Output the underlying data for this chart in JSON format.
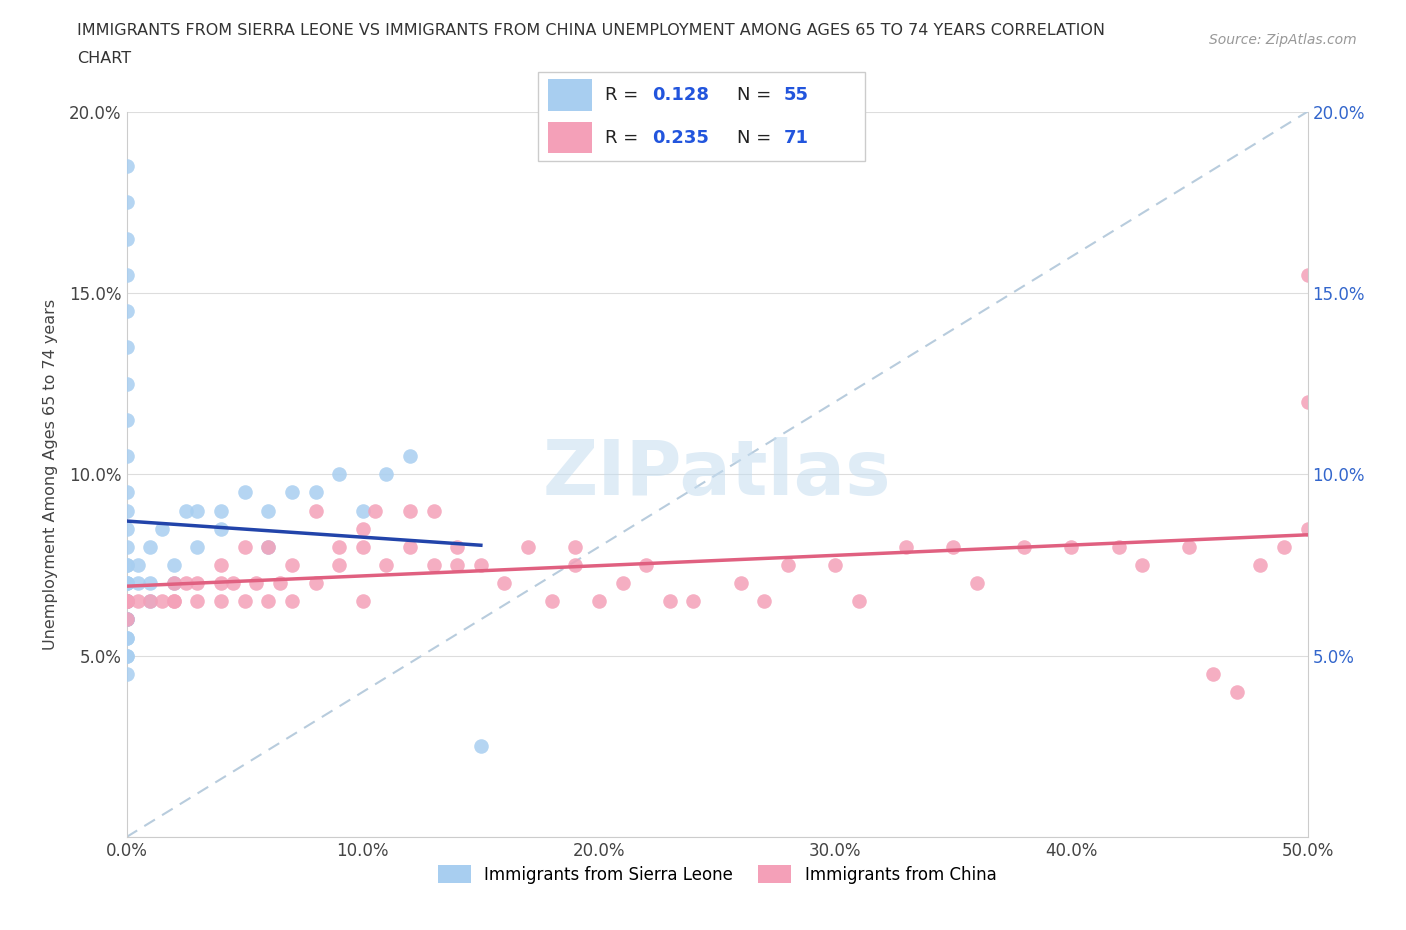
{
  "title_line1": "IMMIGRANTS FROM SIERRA LEONE VS IMMIGRANTS FROM CHINA UNEMPLOYMENT AMONG AGES 65 TO 74 YEARS CORRELATION",
  "title_line2": "CHART",
  "source": "Source: ZipAtlas.com",
  "ylabel": "Unemployment Among Ages 65 to 74 years",
  "xmin": 0.0,
  "xmax": 0.5,
  "ymin": 0.0,
  "ymax": 0.2,
  "sierra_leone_color": "#a8cef0",
  "china_color": "#f4a0b8",
  "sl_line_color": "#2244aa",
  "china_line_color": "#e06080",
  "diag_line_color": "#b8ccdd",
  "sierra_leone_R": 0.128,
  "sierra_leone_N": 55,
  "china_R": 0.235,
  "china_N": 71,
  "legend_label_sl": "Immigrants from Sierra Leone",
  "legend_label_china": "Immigrants from China",
  "watermark": "ZIPatlas",
  "sl_x": [
    0.0,
    0.0,
    0.0,
    0.0,
    0.0,
    0.0,
    0.0,
    0.0,
    0.0,
    0.0,
    0.0,
    0.0,
    0.0,
    0.0,
    0.0,
    0.0,
    0.0,
    0.0,
    0.0,
    0.0,
    0.0,
    0.0,
    0.0,
    0.0,
    0.0,
    0.0,
    0.0,
    0.0,
    0.0,
    0.0,
    0.0,
    0.0,
    0.005,
    0.005,
    0.01,
    0.01,
    0.01,
    0.015,
    0.02,
    0.02,
    0.025,
    0.03,
    0.03,
    0.04,
    0.04,
    0.05,
    0.06,
    0.06,
    0.07,
    0.08,
    0.09,
    0.1,
    0.11,
    0.12,
    0.15
  ],
  "sl_y": [
    0.185,
    0.175,
    0.165,
    0.155,
    0.145,
    0.135,
    0.125,
    0.115,
    0.105,
    0.095,
    0.09,
    0.085,
    0.08,
    0.075,
    0.075,
    0.07,
    0.07,
    0.07,
    0.065,
    0.065,
    0.065,
    0.065,
    0.065,
    0.065,
    0.06,
    0.06,
    0.06,
    0.055,
    0.055,
    0.05,
    0.05,
    0.045,
    0.07,
    0.075,
    0.065,
    0.07,
    0.08,
    0.085,
    0.07,
    0.075,
    0.09,
    0.08,
    0.09,
    0.085,
    0.09,
    0.095,
    0.08,
    0.09,
    0.095,
    0.095,
    0.1,
    0.09,
    0.1,
    0.105,
    0.025
  ],
  "china_x": [
    0.0,
    0.0,
    0.0,
    0.0,
    0.005,
    0.01,
    0.015,
    0.02,
    0.02,
    0.02,
    0.025,
    0.03,
    0.03,
    0.04,
    0.04,
    0.04,
    0.045,
    0.05,
    0.05,
    0.055,
    0.06,
    0.06,
    0.065,
    0.07,
    0.07,
    0.08,
    0.08,
    0.09,
    0.09,
    0.1,
    0.1,
    0.1,
    0.105,
    0.11,
    0.12,
    0.12,
    0.13,
    0.13,
    0.14,
    0.14,
    0.15,
    0.16,
    0.17,
    0.18,
    0.19,
    0.19,
    0.2,
    0.21,
    0.22,
    0.23,
    0.24,
    0.26,
    0.27,
    0.28,
    0.3,
    0.31,
    0.33,
    0.35,
    0.36,
    0.38,
    0.4,
    0.42,
    0.43,
    0.45,
    0.46,
    0.47,
    0.48,
    0.49,
    0.5,
    0.5,
    0.5
  ],
  "china_y": [
    0.065,
    0.065,
    0.065,
    0.06,
    0.065,
    0.065,
    0.065,
    0.07,
    0.065,
    0.065,
    0.07,
    0.065,
    0.07,
    0.065,
    0.07,
    0.075,
    0.07,
    0.065,
    0.08,
    0.07,
    0.065,
    0.08,
    0.07,
    0.065,
    0.075,
    0.07,
    0.09,
    0.075,
    0.08,
    0.065,
    0.08,
    0.085,
    0.09,
    0.075,
    0.08,
    0.09,
    0.075,
    0.09,
    0.075,
    0.08,
    0.075,
    0.07,
    0.08,
    0.065,
    0.075,
    0.08,
    0.065,
    0.07,
    0.075,
    0.065,
    0.065,
    0.07,
    0.065,
    0.075,
    0.075,
    0.065,
    0.08,
    0.08,
    0.07,
    0.08,
    0.08,
    0.08,
    0.075,
    0.08,
    0.045,
    0.04,
    0.075,
    0.08,
    0.085,
    0.12,
    0.155
  ]
}
